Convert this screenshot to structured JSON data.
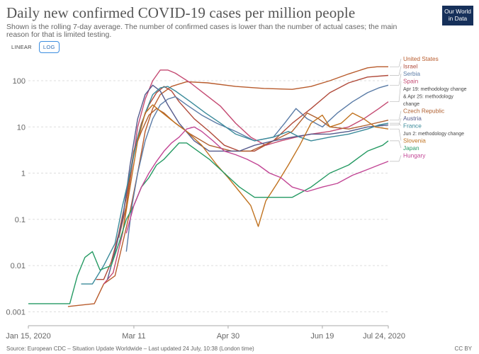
{
  "header": {
    "title": "Daily new confirmed COVID-19 cases per million people",
    "subtitle": "Shown is the rolling 7-day average. The number of confirmed cases is lower than the number of actual cases; the main reason for that is limited testing.",
    "logo_line1": "Our World",
    "logo_line2": "in Data"
  },
  "controls": {
    "linear_label": "LINEAR",
    "log_label": "LOG"
  },
  "footer": {
    "source": "Source: European CDC – Situation Update Worldwide – Last updated 24 July, 10:38 (London time)",
    "license": "CC BY"
  },
  "chart_data": {
    "type": "line",
    "title": "Daily new confirmed COVID-19 cases per million people",
    "y_scale": "log",
    "ylim": [
      0.0005,
      250
    ],
    "y_ticks": [
      {
        "value": 100,
        "label": "100"
      },
      {
        "value": 10,
        "label": "10"
      },
      {
        "value": 1,
        "label": "1"
      },
      {
        "value": 0.1,
        "label": "0.1"
      },
      {
        "value": 0.01,
        "label": "0.01"
      },
      {
        "value": 0.001,
        "label": "0.001"
      }
    ],
    "x_range_days": [
      0,
      191
    ],
    "x_ticks": [
      {
        "day": 0,
        "label": "Jan 15, 2020"
      },
      {
        "day": 56,
        "label": "Mar 11"
      },
      {
        "day": 106,
        "label": "Apr 30"
      },
      {
        "day": 156,
        "label": "Jun 19"
      },
      {
        "day": 191,
        "label": "Jul 24, 2020"
      }
    ],
    "x_unit": "days since Jan 15, 2020",
    "series": [
      {
        "name": "United States",
        "color": "#b85b2c",
        "label_value": 200,
        "points": [
          [
            21,
            0.0013
          ],
          [
            35,
            0.0015
          ],
          [
            40,
            0.004
          ],
          [
            46,
            0.006
          ],
          [
            50,
            0.03
          ],
          [
            54,
            0.15
          ],
          [
            58,
            1
          ],
          [
            62,
            8
          ],
          [
            66,
            25
          ],
          [
            70,
            50
          ],
          [
            76,
            75
          ],
          [
            84,
            95
          ],
          [
            95,
            90
          ],
          [
            110,
            75
          ],
          [
            125,
            68
          ],
          [
            140,
            65
          ],
          [
            150,
            75
          ],
          [
            160,
            100
          ],
          [
            170,
            140
          ],
          [
            180,
            190
          ],
          [
            185,
            200
          ],
          [
            191,
            200
          ]
        ]
      },
      {
        "name": "Israel",
        "color": "#b04a3a",
        "label_value": 130,
        "points": [
          [
            36,
            0.005
          ],
          [
            40,
            0.005
          ],
          [
            44,
            0.012
          ],
          [
            48,
            0.05
          ],
          [
            52,
            0.3
          ],
          [
            56,
            3
          ],
          [
            60,
            12
          ],
          [
            64,
            30
          ],
          [
            68,
            55
          ],
          [
            72,
            75
          ],
          [
            76,
            60
          ],
          [
            80,
            35
          ],
          [
            88,
            15
          ],
          [
            96,
            8
          ],
          [
            104,
            4
          ],
          [
            112,
            3
          ],
          [
            120,
            3
          ],
          [
            130,
            5
          ],
          [
            140,
            12
          ],
          [
            150,
            25
          ],
          [
            160,
            55
          ],
          [
            170,
            90
          ],
          [
            180,
            120
          ],
          [
            191,
            130
          ]
        ]
      },
      {
        "name": "Serbia",
        "color": "#5a7ba6",
        "label_value": 80,
        "points": [
          [
            52,
            0.02
          ],
          [
            55,
            0.2
          ],
          [
            58,
            1
          ],
          [
            62,
            5
          ],
          [
            66,
            15
          ],
          [
            70,
            30
          ],
          [
            74,
            40
          ],
          [
            78,
            45
          ],
          [
            84,
            30
          ],
          [
            92,
            18
          ],
          [
            100,
            12
          ],
          [
            110,
            8
          ],
          [
            120,
            5
          ],
          [
            130,
            6
          ],
          [
            136,
            12
          ],
          [
            142,
            25
          ],
          [
            148,
            15
          ],
          [
            156,
            10
          ],
          [
            164,
            20
          ],
          [
            172,
            35
          ],
          [
            180,
            55
          ],
          [
            186,
            70
          ],
          [
            191,
            80
          ]
        ]
      },
      {
        "name": "Spain",
        "color": "#c44a72",
        "label_value": 35,
        "points": [
          [
            40,
            0.004
          ],
          [
            45,
            0.007
          ],
          [
            50,
            0.05
          ],
          [
            54,
            0.7
          ],
          [
            58,
            10
          ],
          [
            62,
            40
          ],
          [
            66,
            100
          ],
          [
            70,
            170
          ],
          [
            74,
            170
          ],
          [
            78,
            145
          ],
          [
            86,
            90
          ],
          [
            94,
            50
          ],
          [
            102,
            28
          ],
          [
            110,
            12
          ],
          [
            118,
            6
          ],
          [
            126,
            4
          ],
          [
            134,
            5
          ],
          [
            142,
            6
          ],
          [
            150,
            7
          ],
          [
            160,
            8
          ],
          [
            170,
            10
          ],
          [
            178,
            15
          ],
          [
            186,
            25
          ],
          [
            191,
            35
          ]
        ]
      },
      {
        "name": "Czech Republic",
        "color": "#b06030",
        "label_value": 14,
        "points": [
          [
            48,
            0.04
          ],
          [
            52,
            0.2
          ],
          [
            56,
            3
          ],
          [
            60,
            8
          ],
          [
            64,
            18
          ],
          [
            68,
            25
          ],
          [
            72,
            20
          ],
          [
            78,
            12
          ],
          [
            86,
            7
          ],
          [
            96,
            4
          ],
          [
            108,
            3
          ],
          [
            118,
            3
          ],
          [
            130,
            5
          ],
          [
            140,
            8
          ],
          [
            148,
            20
          ],
          [
            154,
            15
          ],
          [
            160,
            10
          ],
          [
            170,
            9
          ],
          [
            180,
            11
          ],
          [
            191,
            14
          ]
        ]
      },
      {
        "name": "Austria",
        "color": "#555a8c",
        "label_value": 11,
        "points": [
          [
            42,
            0.005
          ],
          [
            46,
            0.02
          ],
          [
            50,
            0.1
          ],
          [
            54,
            1.5
          ],
          [
            58,
            15
          ],
          [
            62,
            50
          ],
          [
            66,
            80
          ],
          [
            70,
            60
          ],
          [
            74,
            30
          ],
          [
            80,
            12
          ],
          [
            88,
            5
          ],
          [
            96,
            3
          ],
          [
            104,
            3
          ],
          [
            112,
            3
          ],
          [
            120,
            4
          ],
          [
            130,
            5
          ],
          [
            140,
            6
          ],
          [
            150,
            7
          ],
          [
            160,
            7
          ],
          [
            170,
            8
          ],
          [
            180,
            10
          ],
          [
            191,
            11
          ]
        ]
      },
      {
        "name": "France",
        "color": "#3a8a9a",
        "label_value": 12,
        "points": [
          [
            28,
            0.004
          ],
          [
            34,
            0.004
          ],
          [
            40,
            0.01
          ],
          [
            46,
            0.03
          ],
          [
            50,
            0.2
          ],
          [
            54,
            1
          ],
          [
            58,
            6
          ],
          [
            62,
            20
          ],
          [
            66,
            50
          ],
          [
            70,
            70
          ],
          [
            74,
            75
          ],
          [
            78,
            60
          ],
          [
            86,
            35
          ],
          [
            94,
            20
          ],
          [
            102,
            12
          ],
          [
            110,
            7
          ],
          [
            120,
            5
          ],
          [
            130,
            6
          ],
          [
            138,
            8
          ],
          [
            144,
            6
          ],
          [
            150,
            5
          ],
          [
            160,
            6
          ],
          [
            170,
            7
          ],
          [
            180,
            9
          ],
          [
            186,
            11
          ],
          [
            191,
            12
          ]
        ]
      },
      {
        "name": "Slovenia",
        "color": "#c0721f",
        "label_value": 9,
        "points": [
          [
            50,
            0.05
          ],
          [
            54,
            0.5
          ],
          [
            58,
            5
          ],
          [
            62,
            20
          ],
          [
            66,
            30
          ],
          [
            70,
            22
          ],
          [
            76,
            14
          ],
          [
            84,
            8
          ],
          [
            92,
            4
          ],
          [
            100,
            1.5
          ],
          [
            106,
            0.8
          ],
          [
            112,
            0.4
          ],
          [
            118,
            0.2
          ],
          [
            122,
            0.07
          ],
          [
            126,
            0.25
          ],
          [
            132,
            0.6
          ],
          [
            138,
            1.5
          ],
          [
            144,
            4
          ],
          [
            150,
            12
          ],
          [
            156,
            18
          ],
          [
            160,
            10
          ],
          [
            166,
            12
          ],
          [
            172,
            20
          ],
          [
            178,
            15
          ],
          [
            184,
            10
          ],
          [
            191,
            9
          ]
        ]
      },
      {
        "name": "Japan",
        "color": "#259a63",
        "label_value": 5,
        "points": [
          [
            0,
            0.0015
          ],
          [
            22,
            0.0015
          ],
          [
            26,
            0.006
          ],
          [
            30,
            0.015
          ],
          [
            34,
            0.02
          ],
          [
            38,
            0.008
          ],
          [
            44,
            0.01
          ],
          [
            48,
            0.03
          ],
          [
            52,
            0.1
          ],
          [
            56,
            0.2
          ],
          [
            60,
            0.5
          ],
          [
            64,
            0.8
          ],
          [
            68,
            1.5
          ],
          [
            72,
            2
          ],
          [
            76,
            3
          ],
          [
            80,
            4.5
          ],
          [
            84,
            4.5
          ],
          [
            90,
            3
          ],
          [
            96,
            2
          ],
          [
            104,
            1
          ],
          [
            112,
            0.5
          ],
          [
            120,
            0.3
          ],
          [
            130,
            0.3
          ],
          [
            140,
            0.3
          ],
          [
            150,
            0.5
          ],
          [
            160,
            1
          ],
          [
            170,
            1.5
          ],
          [
            180,
            3
          ],
          [
            188,
            4
          ],
          [
            191,
            5
          ]
        ]
      },
      {
        "name": "Hungary",
        "color": "#c24695",
        "label_value": 1.8,
        "points": [
          [
            52,
            0.05
          ],
          [
            56,
            0.2
          ],
          [
            60,
            0.5
          ],
          [
            64,
            1
          ],
          [
            68,
            1.8
          ],
          [
            72,
            3
          ],
          [
            76,
            4.5
          ],
          [
            80,
            6
          ],
          [
            84,
            9
          ],
          [
            88,
            10
          ],
          [
            92,
            8
          ],
          [
            98,
            5
          ],
          [
            104,
            3
          ],
          [
            110,
            2.5
          ],
          [
            116,
            2
          ],
          [
            122,
            1.5
          ],
          [
            128,
            1
          ],
          [
            134,
            0.8
          ],
          [
            140,
            0.5
          ],
          [
            148,
            0.4
          ],
          [
            156,
            0.5
          ],
          [
            164,
            0.6
          ],
          [
            172,
            0.9
          ],
          [
            180,
            1.2
          ],
          [
            186,
            1.5
          ],
          [
            191,
            1.8
          ]
        ]
      }
    ],
    "legend": [
      {
        "series": "United States",
        "label": "United States",
        "color": "#b85b2c"
      },
      {
        "series": "Israel",
        "label": "Israel",
        "color": "#b04a3a"
      },
      {
        "series": "Serbia",
        "label": "Serbia",
        "color": "#5a7ba6"
      },
      {
        "series": "Spain",
        "label": "Spain",
        "color": "#c44a72"
      },
      {
        "series": "",
        "label": "Apr 19: methodology change",
        "color": "#444444",
        "note": true
      },
      {
        "series": "",
        "label": "& Apr 25: methodology",
        "color": "#444444",
        "note": true
      },
      {
        "series": "",
        "label": "change",
        "color": "#444444",
        "note": true
      },
      {
        "series": "Czech Republic",
        "label": "Czech Republic",
        "color": "#b06030"
      },
      {
        "series": "Austria",
        "label": "Austria",
        "color": "#555a8c"
      },
      {
        "series": "France",
        "label": "France",
        "color": "#3a8a9a"
      },
      {
        "series": "",
        "label": "Jun 2: methodology change",
        "color": "#444444",
        "note": true
      },
      {
        "series": "Slovenia",
        "label": "Slovenia",
        "color": "#c0721f"
      },
      {
        "series": "Japan",
        "label": "Japan",
        "color": "#259a63"
      },
      {
        "series": "Hungary",
        "label": "Hungary",
        "color": "#c24695"
      }
    ]
  }
}
